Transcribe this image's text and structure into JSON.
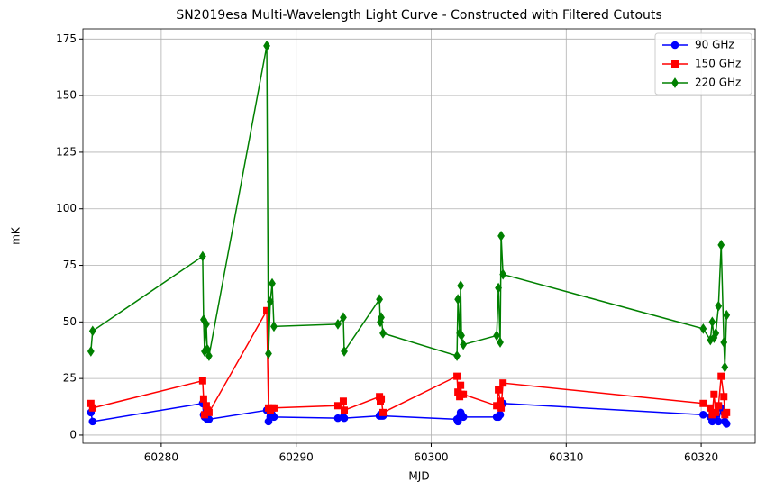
{
  "chart_data": {
    "type": "line",
    "title": "SN2019esa Multi-Wavelength Light Curve - Constructed with Filtered Cutouts",
    "x_label": "MJD",
    "y_label": "mK",
    "x": [
      60274.79,
      60274.92,
      60283.07,
      60283.14,
      60283.21,
      60283.34,
      60283.41,
      60283.54,
      60287.82,
      60287.95,
      60288.08,
      60288.22,
      60288.35,
      60293.09,
      60293.49,
      60293.56,
      60296.17,
      60296.23,
      60296.3,
      60296.43,
      60301.91,
      60301.98,
      60302.11,
      60302.18,
      60302.24,
      60302.38,
      60304.85,
      60304.98,
      60305.11,
      60305.18,
      60305.32,
      60320.15,
      60320.68,
      60320.82,
      60320.95,
      60321.08,
      60321.28,
      60321.48,
      60321.68,
      60321.75,
      60321.88
    ],
    "series": [
      {
        "name": "90 GHz",
        "color": "#0000ff",
        "marker": "circle",
        "values": [
          10,
          6,
          14,
          9,
          8,
          9,
          7,
          7,
          11,
          6,
          8,
          9,
          8,
          7.5,
          8,
          7.5,
          8.5,
          9,
          8.5,
          8.5,
          7,
          6,
          8,
          10,
          9,
          8,
          8,
          8,
          9,
          14,
          14,
          9,
          8,
          6,
          7,
          9,
          6,
          12,
          10,
          6,
          5
        ]
      },
      {
        "name": "150 GHz",
        "color": "#ff0000",
        "marker": "square",
        "values": [
          14,
          12,
          24,
          16,
          9,
          13,
          11,
          10,
          55,
          12,
          11,
          12,
          12,
          13,
          15,
          11,
          17,
          15,
          16,
          10,
          26,
          19,
          17,
          22,
          18,
          18,
          13,
          20,
          15,
          12,
          23,
          14,
          12,
          9,
          18,
          10,
          13,
          26,
          17,
          9,
          10
        ]
      },
      {
        "name": "220 GHz",
        "color": "#008000",
        "marker": "diamond",
        "values": [
          37,
          46,
          79,
          51,
          37,
          49,
          38,
          35,
          172,
          36,
          59,
          67,
          48,
          49,
          52,
          37,
          60,
          50,
          52,
          45,
          35,
          60,
          45,
          66,
          44,
          40,
          44,
          65,
          41,
          88,
          71,
          47,
          42,
          50,
          43,
          45,
          57,
          84,
          41,
          30,
          53
        ]
      }
    ],
    "xlim": [
      60274.2,
      60324.0
    ],
    "xticks": [
      60280,
      60290,
      60300,
      60310,
      60320
    ],
    "ylim": [
      -3.6,
      179.5
    ],
    "yticks": [
      0,
      25,
      50,
      75,
      100,
      125,
      150,
      175
    ],
    "grid": true,
    "legend": "upper right"
  }
}
